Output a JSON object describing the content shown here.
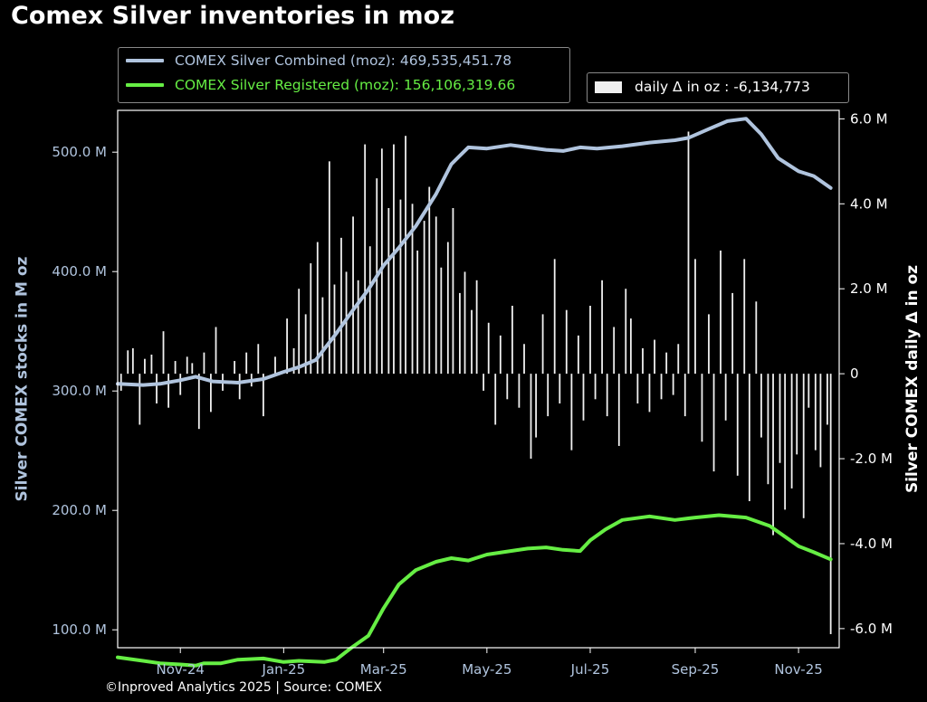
{
  "title": "Comex Silver inventories in moz",
  "footer": "©Inproved Analytics 2025 | Source: COMEX",
  "colors": {
    "background": "#000000",
    "combined": "#b0c4de",
    "registered": "#66ee44",
    "delta": "#f0f0f0",
    "axis_text": "#b0c4de"
  },
  "legend": {
    "combined_label": "COMEX Silver Combined (moz): 469,535,451.78",
    "registered_label": "COMEX Silver Registered (moz): 156,106,319.66",
    "delta_label": "daily Δ in oz : -6,134,773"
  },
  "chart_data": {
    "type": "line",
    "title": "Comex Silver inventories in moz",
    "x_tick_labels": [
      "Nov-24",
      "Jan-25",
      "Mar-25",
      "May-25",
      "Jul-25",
      "Sep-25",
      "Nov-25"
    ],
    "left_axis": {
      "label": "Silver COMEX stocks in M oz",
      "ticks": [
        100,
        200,
        300,
        400,
        500
      ],
      "tick_labels": [
        "100.0 M",
        "200.0 M",
        "300.0 M",
        "400.0 M",
        "500.0 M"
      ],
      "ylim": [
        85,
        535
      ]
    },
    "right_axis": {
      "label": "Silver COMEX daily Δ in oz",
      "ticks": [
        -6,
        -4,
        -2,
        0,
        2,
        4,
        6
      ],
      "tick_labels": [
        "-6.0 M",
        "-4.0 M",
        "-2.0 M",
        "0",
        "2.0 M",
        "4.0 M",
        "6.0 M"
      ],
      "ylim_millions": [
        -6.45,
        6.2
      ]
    },
    "xlim": [
      "2024-09-25",
      "2025-11-25"
    ],
    "series": [
      {
        "name": "COMEX Silver Combined (moz)",
        "axis": "left",
        "points": [
          [
            "2024-09-25",
            306
          ],
          [
            "2024-10-10",
            305
          ],
          [
            "2024-10-20",
            306
          ],
          [
            "2024-11-01",
            309
          ],
          [
            "2024-11-10",
            312
          ],
          [
            "2024-11-20",
            308
          ],
          [
            "2024-12-05",
            307
          ],
          [
            "2024-12-20",
            310
          ],
          [
            "2025-01-01",
            316
          ],
          [
            "2025-01-10",
            320
          ],
          [
            "2025-01-20",
            326
          ],
          [
            "2025-02-01",
            348
          ],
          [
            "2025-02-10",
            366
          ],
          [
            "2025-02-20",
            385
          ],
          [
            "2025-03-01",
            405
          ],
          [
            "2025-03-10",
            420
          ],
          [
            "2025-03-20",
            438
          ],
          [
            "2025-04-01",
            465
          ],
          [
            "2025-04-10",
            490
          ],
          [
            "2025-04-20",
            504
          ],
          [
            "2025-05-01",
            503
          ],
          [
            "2025-05-15",
            506
          ],
          [
            "2025-05-25",
            504
          ],
          [
            "2025-06-05",
            502
          ],
          [
            "2025-06-15",
            501
          ],
          [
            "2025-06-25",
            504
          ],
          [
            "2025-07-05",
            503
          ],
          [
            "2025-07-20",
            505
          ],
          [
            "2025-08-05",
            508
          ],
          [
            "2025-08-20",
            510
          ],
          [
            "2025-08-28",
            512
          ],
          [
            "2025-09-10",
            520
          ],
          [
            "2025-09-20",
            526
          ],
          [
            "2025-10-01",
            528
          ],
          [
            "2025-10-10",
            515
          ],
          [
            "2025-10-20",
            495
          ],
          [
            "2025-11-01",
            484
          ],
          [
            "2025-11-10",
            480
          ],
          [
            "2025-11-20",
            470
          ]
        ]
      },
      {
        "name": "COMEX Silver Registered (moz)",
        "axis": "left",
        "points": [
          [
            "2024-09-25",
            77
          ],
          [
            "2024-10-10",
            74
          ],
          [
            "2024-10-20",
            72
          ],
          [
            "2024-11-01",
            71
          ],
          [
            "2024-11-10",
            70
          ],
          [
            "2024-11-15",
            72
          ],
          [
            "2024-11-25",
            72
          ],
          [
            "2024-12-05",
            75
          ],
          [
            "2024-12-20",
            76
          ],
          [
            "2025-01-01",
            73
          ],
          [
            "2025-01-10",
            74
          ],
          [
            "2025-01-25",
            73
          ],
          [
            "2025-02-01",
            75
          ],
          [
            "2025-02-10",
            85
          ],
          [
            "2025-02-20",
            95
          ],
          [
            "2025-03-01",
            118
          ],
          [
            "2025-03-10",
            138
          ],
          [
            "2025-03-20",
            150
          ],
          [
            "2025-04-01",
            157
          ],
          [
            "2025-04-10",
            160
          ],
          [
            "2025-04-20",
            158
          ],
          [
            "2025-05-01",
            163
          ],
          [
            "2025-05-15",
            166
          ],
          [
            "2025-05-25",
            168
          ],
          [
            "2025-06-05",
            169
          ],
          [
            "2025-06-15",
            167
          ],
          [
            "2025-06-25",
            166
          ],
          [
            "2025-07-01",
            175
          ],
          [
            "2025-07-10",
            184
          ],
          [
            "2025-07-20",
            192
          ],
          [
            "2025-08-05",
            195
          ],
          [
            "2025-08-20",
            192
          ],
          [
            "2025-09-01",
            194
          ],
          [
            "2025-09-15",
            196
          ],
          [
            "2025-10-01",
            194
          ],
          [
            "2025-10-15",
            187
          ],
          [
            "2025-11-01",
            170
          ],
          [
            "2025-11-10",
            165
          ],
          [
            "2025-11-20",
            159
          ]
        ]
      },
      {
        "name": "daily Δ in oz",
        "type": "bar",
        "axis": "right",
        "unit": "M oz",
        "points": [
          [
            "2024-09-27",
            -0.4
          ],
          [
            "2024-10-01",
            0.55
          ],
          [
            "2024-10-04",
            0.6
          ],
          [
            "2024-10-08",
            -1.2
          ],
          [
            "2024-10-11",
            0.35
          ],
          [
            "2024-10-15",
            0.45
          ],
          [
            "2024-10-18",
            -0.7
          ],
          [
            "2024-10-22",
            1.0
          ],
          [
            "2024-10-25",
            -0.8
          ],
          [
            "2024-10-29",
            0.3
          ],
          [
            "2024-11-01",
            -0.5
          ],
          [
            "2024-11-05",
            0.4
          ],
          [
            "2024-11-08",
            0.25
          ],
          [
            "2024-11-12",
            -1.3
          ],
          [
            "2024-11-15",
            0.5
          ],
          [
            "2024-11-19",
            -0.9
          ],
          [
            "2024-11-22",
            1.1
          ],
          [
            "2024-11-26",
            -0.4
          ],
          [
            "2024-12-03",
            0.3
          ],
          [
            "2024-12-06",
            -0.6
          ],
          [
            "2024-12-10",
            0.5
          ],
          [
            "2024-12-13",
            -0.3
          ],
          [
            "2024-12-17",
            0.7
          ],
          [
            "2024-12-20",
            -1.0
          ],
          [
            "2024-12-27",
            0.4
          ],
          [
            "2025-01-03",
            1.3
          ],
          [
            "2025-01-07",
            0.6
          ],
          [
            "2025-01-10",
            2.0
          ],
          [
            "2025-01-14",
            1.4
          ],
          [
            "2025-01-17",
            2.6
          ],
          [
            "2025-01-21",
            3.1
          ],
          [
            "2025-01-24",
            1.8
          ],
          [
            "2025-01-28",
            5.0
          ],
          [
            "2025-01-31",
            2.1
          ],
          [
            "2025-02-04",
            3.2
          ],
          [
            "2025-02-07",
            2.4
          ],
          [
            "2025-02-11",
            3.7
          ],
          [
            "2025-02-14",
            2.2
          ],
          [
            "2025-02-18",
            5.4
          ],
          [
            "2025-02-21",
            3.0
          ],
          [
            "2025-02-25",
            4.6
          ],
          [
            "2025-02-28",
            5.3
          ],
          [
            "2025-03-04",
            3.9
          ],
          [
            "2025-03-07",
            5.4
          ],
          [
            "2025-03-11",
            4.1
          ],
          [
            "2025-03-14",
            5.6
          ],
          [
            "2025-03-18",
            4.0
          ],
          [
            "2025-03-21",
            2.9
          ],
          [
            "2025-03-25",
            3.6
          ],
          [
            "2025-03-28",
            4.4
          ],
          [
            "2025-04-01",
            3.7
          ],
          [
            "2025-04-04",
            2.5
          ],
          [
            "2025-04-08",
            3.1
          ],
          [
            "2025-04-11",
            3.9
          ],
          [
            "2025-04-15",
            1.9
          ],
          [
            "2025-04-18",
            2.4
          ],
          [
            "2025-04-22",
            1.5
          ],
          [
            "2025-04-25",
            2.2
          ],
          [
            "2025-04-29",
            -0.4
          ],
          [
            "2025-05-02",
            1.2
          ],
          [
            "2025-05-06",
            -1.2
          ],
          [
            "2025-05-09",
            0.9
          ],
          [
            "2025-05-13",
            -0.6
          ],
          [
            "2025-05-16",
            1.6
          ],
          [
            "2025-05-20",
            -0.8
          ],
          [
            "2025-05-23",
            0.7
          ],
          [
            "2025-05-27",
            -2.0
          ],
          [
            "2025-05-30",
            -1.5
          ],
          [
            "2025-06-03",
            1.4
          ],
          [
            "2025-06-06",
            -1.0
          ],
          [
            "2025-06-10",
            2.7
          ],
          [
            "2025-06-13",
            -0.7
          ],
          [
            "2025-06-17",
            1.5
          ],
          [
            "2025-06-20",
            -1.8
          ],
          [
            "2025-06-24",
            0.9
          ],
          [
            "2025-06-27",
            -1.1
          ],
          [
            "2025-07-01",
            1.6
          ],
          [
            "2025-07-04",
            -0.6
          ],
          [
            "2025-07-08",
            2.2
          ],
          [
            "2025-07-11",
            -1.0
          ],
          [
            "2025-07-15",
            1.1
          ],
          [
            "2025-07-18",
            -1.7
          ],
          [
            "2025-07-22",
            2.0
          ],
          [
            "2025-07-25",
            1.3
          ],
          [
            "2025-07-29",
            -0.7
          ],
          [
            "2025-08-01",
            0.6
          ],
          [
            "2025-08-05",
            -0.9
          ],
          [
            "2025-08-08",
            0.8
          ],
          [
            "2025-08-12",
            -0.6
          ],
          [
            "2025-08-15",
            0.5
          ],
          [
            "2025-08-19",
            -0.5
          ],
          [
            "2025-08-22",
            0.7
          ],
          [
            "2025-08-26",
            -1.0
          ],
          [
            "2025-08-28",
            5.7
          ],
          [
            "2025-09-01",
            2.7
          ],
          [
            "2025-09-05",
            -1.6
          ],
          [
            "2025-09-09",
            1.4
          ],
          [
            "2025-09-12",
            -2.3
          ],
          [
            "2025-09-16",
            2.9
          ],
          [
            "2025-09-19",
            -1.1
          ],
          [
            "2025-09-23",
            1.9
          ],
          [
            "2025-09-26",
            -2.4
          ],
          [
            "2025-09-30",
            2.7
          ],
          [
            "2025-10-03",
            -3.0
          ],
          [
            "2025-10-07",
            1.7
          ],
          [
            "2025-10-10",
            -1.5
          ],
          [
            "2025-10-14",
            -2.6
          ],
          [
            "2025-10-17",
            -3.8
          ],
          [
            "2025-10-21",
            -2.1
          ],
          [
            "2025-10-24",
            -3.2
          ],
          [
            "2025-10-28",
            -2.7
          ],
          [
            "2025-10-31",
            -1.9
          ],
          [
            "2025-11-04",
            -3.4
          ],
          [
            "2025-11-07",
            -0.8
          ],
          [
            "2025-11-11",
            -1.8
          ],
          [
            "2025-11-14",
            -2.2
          ],
          [
            "2025-11-18",
            -1.2
          ],
          [
            "2025-11-20",
            -6.13
          ]
        ]
      }
    ],
    "grid": false,
    "legend_position": "top-left"
  }
}
